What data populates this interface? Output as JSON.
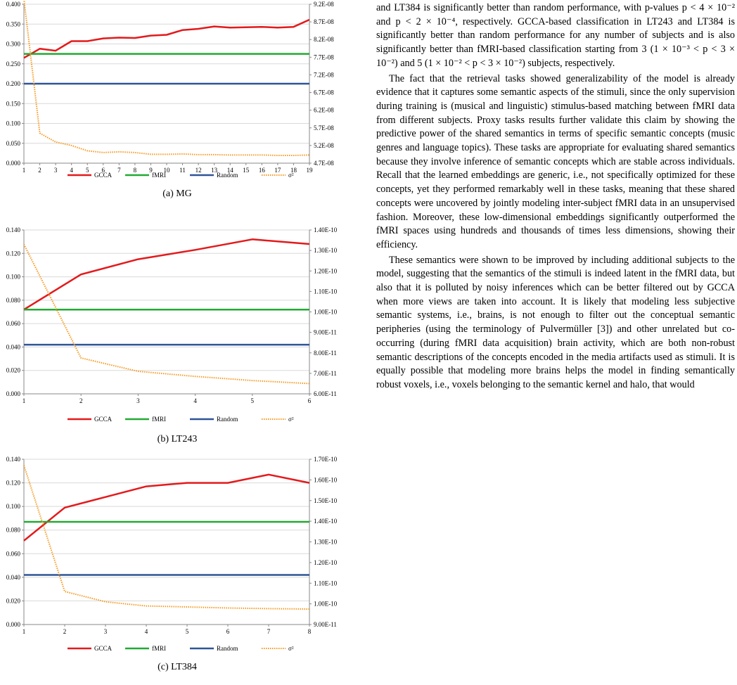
{
  "figures": [
    {
      "caption": "(a) MG",
      "chart_data": {
        "type": "line",
        "x": [
          1,
          2,
          3,
          4,
          5,
          6,
          7,
          8,
          9,
          10,
          11,
          12,
          13,
          14,
          15,
          16,
          17,
          18,
          19
        ],
        "x_ticks": [
          "1",
          "2",
          "3",
          "4",
          "5",
          "6",
          "7",
          "8",
          "9",
          "10",
          "11",
          "12",
          "13",
          "14",
          "15",
          "16",
          "17",
          "18",
          "19"
        ],
        "ylim": [
          0,
          0.4
        ],
        "y_ticks": [
          "0.000",
          "0.050",
          "0.100",
          "0.150",
          "0.200",
          "0.250",
          "0.300",
          "0.350",
          "0.400"
        ],
        "y2lim": [
          4.7e-08,
          9.2e-08
        ],
        "y2_ticks": [
          "4.7E-08",
          "5.2E-08",
          "5.7E-08",
          "6.2E-08",
          "6.7E-08",
          "7.2E-08",
          "7.7E-08",
          "8.2E-08",
          "8.7E-08",
          "9.2E-08"
        ],
        "series": [
          {
            "name": "GCCA",
            "color": "#e31a1c",
            "axis": "left",
            "values": [
              0.265,
              0.288,
              0.283,
              0.307,
              0.307,
              0.314,
              0.316,
              0.315,
              0.321,
              0.323,
              0.335,
              0.338,
              0.344,
              0.341,
              0.342,
              0.343,
              0.341,
              0.343,
              0.361
            ]
          },
          {
            "name": "fMRI",
            "color": "#22aa33",
            "axis": "left",
            "values": [
              0.275,
              0.275,
              0.275,
              0.275,
              0.275,
              0.275,
              0.275,
              0.275,
              0.275,
              0.275,
              0.275,
              0.275,
              0.275,
              0.275,
              0.275,
              0.275,
              0.275,
              0.275,
              0.275
            ]
          },
          {
            "name": "Random",
            "color": "#2f5597",
            "axis": "left",
            "values": [
              0.2,
              0.2,
              0.2,
              0.2,
              0.2,
              0.2,
              0.2,
              0.2,
              0.2,
              0.2,
              0.2,
              0.2,
              0.2,
              0.2,
              0.2,
              0.2,
              0.2,
              0.2,
              0.2
            ]
          },
          {
            "name": "σ²",
            "color": "#f59a23",
            "axis": "right",
            "dotted": true,
            "values": [
              9.35e-08,
              5.55e-08,
              5.3e-08,
              5.2e-08,
              5.05e-08,
              5e-08,
              5.02e-08,
              5e-08,
              4.95e-08,
              4.95e-08,
              4.96e-08,
              4.94e-08,
              4.94e-08,
              4.93e-08,
              4.93e-08,
              4.93e-08,
              4.92e-08,
              4.92e-08,
              4.93e-08
            ]
          }
        ]
      }
    },
    {
      "caption": "(b) LT243",
      "chart_data": {
        "type": "line",
        "x": [
          1,
          2,
          3,
          4,
          5,
          6
        ],
        "x_ticks": [
          "1",
          "2",
          "3",
          "4",
          "5",
          "6"
        ],
        "ylim": [
          0,
          0.14
        ],
        "y_ticks": [
          "0.000",
          "0.020",
          "0.040",
          "0.060",
          "0.080",
          "0.100",
          "0.120",
          "0.140"
        ],
        "y2lim": [
          6e-11,
          1.4e-10
        ],
        "y2_ticks": [
          "6.00E-11",
          "7.00E-11",
          "8.00E-11",
          "9.00E-11",
          "1.00E-10",
          "1.10E-10",
          "1.20E-10",
          "1.30E-10",
          "1.40E-10"
        ],
        "series": [
          {
            "name": "GCCA",
            "color": "#e31a1c",
            "axis": "left",
            "values": [
              0.072,
              0.102,
              0.115,
              0.123,
              0.132,
              0.128
            ]
          },
          {
            "name": "fMRI",
            "color": "#22aa33",
            "axis": "left",
            "values": [
              0.072,
              0.072,
              0.072,
              0.072,
              0.072,
              0.072
            ]
          },
          {
            "name": "Random",
            "color": "#2f5597",
            "axis": "left",
            "values": [
              0.042,
              0.042,
              0.042,
              0.042,
              0.042,
              0.042
            ]
          },
          {
            "name": "σ²",
            "color": "#f59a23",
            "axis": "right",
            "dotted": true,
            "values": [
              1.33e-10,
              7.75e-11,
              7.1e-11,
              6.85e-11,
              6.65e-11,
              6.5e-11
            ]
          }
        ]
      }
    },
    {
      "caption": "(c) LT384",
      "chart_data": {
        "type": "line",
        "x": [
          1,
          2,
          3,
          4,
          5,
          6,
          7,
          8
        ],
        "x_ticks": [
          "1",
          "2",
          "3",
          "4",
          "5",
          "6",
          "7",
          "8"
        ],
        "ylim": [
          0,
          0.14
        ],
        "y_ticks": [
          "0.000",
          "0.020",
          "0.040",
          "0.060",
          "0.080",
          "0.100",
          "0.120",
          "0.140"
        ],
        "y2lim": [
          9e-11,
          1.7e-10
        ],
        "y2_ticks": [
          "9.00E-11",
          "1.00E-10",
          "1.10E-10",
          "1.20E-10",
          "1.30E-10",
          "1.40E-10",
          "1.50E-10",
          "1.60E-10",
          "1.70E-10"
        ],
        "series": [
          {
            "name": "GCCA",
            "color": "#e31a1c",
            "axis": "left",
            "values": [
              0.071,
              0.099,
              0.108,
              0.117,
              0.12,
              0.12,
              0.127,
              0.12
            ]
          },
          {
            "name": "fMRI",
            "color": "#22aa33",
            "axis": "left",
            "values": [
              0.087,
              0.087,
              0.087,
              0.087,
              0.087,
              0.087,
              0.087,
              0.087
            ]
          },
          {
            "name": "Random",
            "color": "#2f5597",
            "axis": "left",
            "values": [
              0.042,
              0.042,
              0.042,
              0.042,
              0.042,
              0.042,
              0.042,
              0.042
            ]
          },
          {
            "name": "σ²",
            "color": "#f59a23",
            "axis": "right",
            "dotted": true,
            "values": [
              1.67e-10,
              1.06e-10,
              1.01e-10,
              9.9e-11,
              9.85e-11,
              9.8e-11,
              9.77e-11,
              9.75e-11
            ]
          }
        ]
      }
    }
  ],
  "text": {
    "p1": "and LT384 is significantly better than random performance, with p-values p < 4 × 10⁻² and p < 2 × 10⁻⁴, respectively. GCCA-based classification in LT243 and LT384 is significantly better than random performance for any number of subjects and is also significantly better than fMRI-based classification starting from 3 (1 × 10⁻³ < p < 3 × 10⁻²) and 5 (1 × 10⁻² < p < 3 × 10⁻²) subjects, respectively.",
    "p2": "The fact that the retrieval tasks showed generalizability of the model is already evidence that it captures some semantic aspects of the stimuli, since the only supervision during training is (musical and linguistic) stimulus-based matching between fMRI data from different subjects. Proxy tasks results further validate this claim by showing the predictive power of the shared semantics in terms of specific semantic concepts (music genres and language topics). These tasks are appropriate for evaluating shared semantics because they involve inference of semantic concepts which are stable across individuals. Recall that the learned embeddings are generic, i.e., not specifically optimized for these concepts, yet they performed remarkably well in these tasks, meaning that these shared concepts were uncovered by jointly modeling inter-subject fMRI data in an unsupervised fashion. Moreover, these low-dimensional embeddings significantly outperformed the fMRI spaces using hundreds and thousands of times less dimensions, showing their efficiency.",
    "p3": "These semantics were shown to be improved by including additional subjects to the model, suggesting that the semantics of the stimuli is indeed latent in the fMRI data, but also that it is polluted by noisy inferences which can be better filtered out by GCCA when more views are taken into account. It is likely that modeling less subjective semantic systems, i.e., brains, is not enough to filter out the conceptual semantic peripheries (using the terminology of Pulvermüller [3]) and other unrelated but co-occurring (during fMRI data acquisition) brain activity, which are both non-robust semantic descriptions of the concepts encoded in the media artifacts used as stimuli. It is equally possible that modeling more brains helps the model in finding semantically robust voxels, i.e., voxels belonging to the semantic kernel and halo, that would"
  }
}
